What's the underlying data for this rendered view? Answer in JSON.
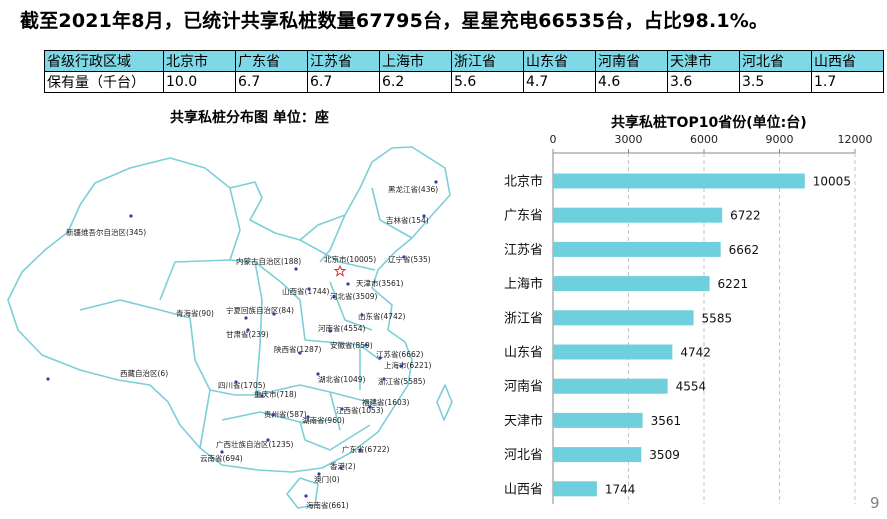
{
  "headline": "截至2021年8月，已统计共享私桩数量67795台，星星充电66535台，占比98.1%。",
  "table": {
    "header_label": "省级行政区域",
    "row_label": "保有量（千台）",
    "columns": [
      {
        "name": "北京市",
        "value": "10.0"
      },
      {
        "name": "广东省",
        "value": "6.7"
      },
      {
        "name": "江苏省",
        "value": "6.7"
      },
      {
        "name": "上海市",
        "value": "6.2"
      },
      {
        "name": "浙江省",
        "value": "5.6"
      },
      {
        "name": "山东省",
        "value": "4.7"
      },
      {
        "name": "河南省",
        "value": "4.6"
      },
      {
        "name": "天津市",
        "value": "3.6"
      },
      {
        "name": "河北省",
        "value": "3.5"
      },
      {
        "name": "山西省",
        "value": "1.7"
      }
    ]
  },
  "map": {
    "title": "共享私桩分布图  单位：座",
    "regions": [
      {
        "label": "黑龙江省(436)"
      },
      {
        "label": "吉林省(154)"
      },
      {
        "label": "辽宁省(535)"
      },
      {
        "label": "新疆维吾尔自治区(345)"
      },
      {
        "label": "内蒙古自治区(188)"
      },
      {
        "label": "北京市(10005)"
      },
      {
        "label": "天津市(3561)"
      },
      {
        "label": "山西省(1744)"
      },
      {
        "label": "河北省(3509)"
      },
      {
        "label": "青海省(90)"
      },
      {
        "label": "宁夏回族自治区(84)"
      },
      {
        "label": "山东省(4742)"
      },
      {
        "label": "甘肃省(239)"
      },
      {
        "label": "河南省(4554)"
      },
      {
        "label": "陕西省(1287)"
      },
      {
        "label": "安徽省(859)"
      },
      {
        "label": "江苏省(6662)"
      },
      {
        "label": "上海市(6221)"
      },
      {
        "label": "西藏自治区(6)"
      },
      {
        "label": "湖北省(1049)"
      },
      {
        "label": "浙江省(5585)"
      },
      {
        "label": "四川省(1705)"
      },
      {
        "label": "重庆市(718)"
      },
      {
        "label": "福建省(1603)"
      },
      {
        "label": "江西省(1053)"
      },
      {
        "label": "贵州省(587)"
      },
      {
        "label": "湖南省(960)"
      },
      {
        "label": "广西壮族自治区(1235)"
      },
      {
        "label": "广东省(6722)"
      },
      {
        "label": "云南省(694)"
      },
      {
        "label": "香港(2)"
      },
      {
        "label": "澳门(0)"
      },
      {
        "label": "海南省(661)"
      }
    ],
    "colors": {
      "border": "#7ccfd8",
      "dot": "#3b3b9c",
      "capital": "#e03030"
    }
  },
  "chart_data": {
    "type": "bar",
    "orientation": "horizontal",
    "title": "共享私桩TOP10省份(单位:台)",
    "categories": [
      "北京市",
      "广东省",
      "江苏省",
      "上海市",
      "浙江省",
      "山东省",
      "河南省",
      "天津市",
      "河北省",
      "山西省"
    ],
    "values": [
      10005,
      6722,
      6662,
      6221,
      5585,
      4742,
      4554,
      3561,
      3509,
      1744
    ],
    "xlim": [
      0,
      12000
    ],
    "xticks": [
      0,
      3000,
      6000,
      9000,
      12000
    ],
    "axis_position": "top",
    "grid": "vertical-dashed",
    "bar_color": "#6dd0dc"
  },
  "page_number": "9"
}
